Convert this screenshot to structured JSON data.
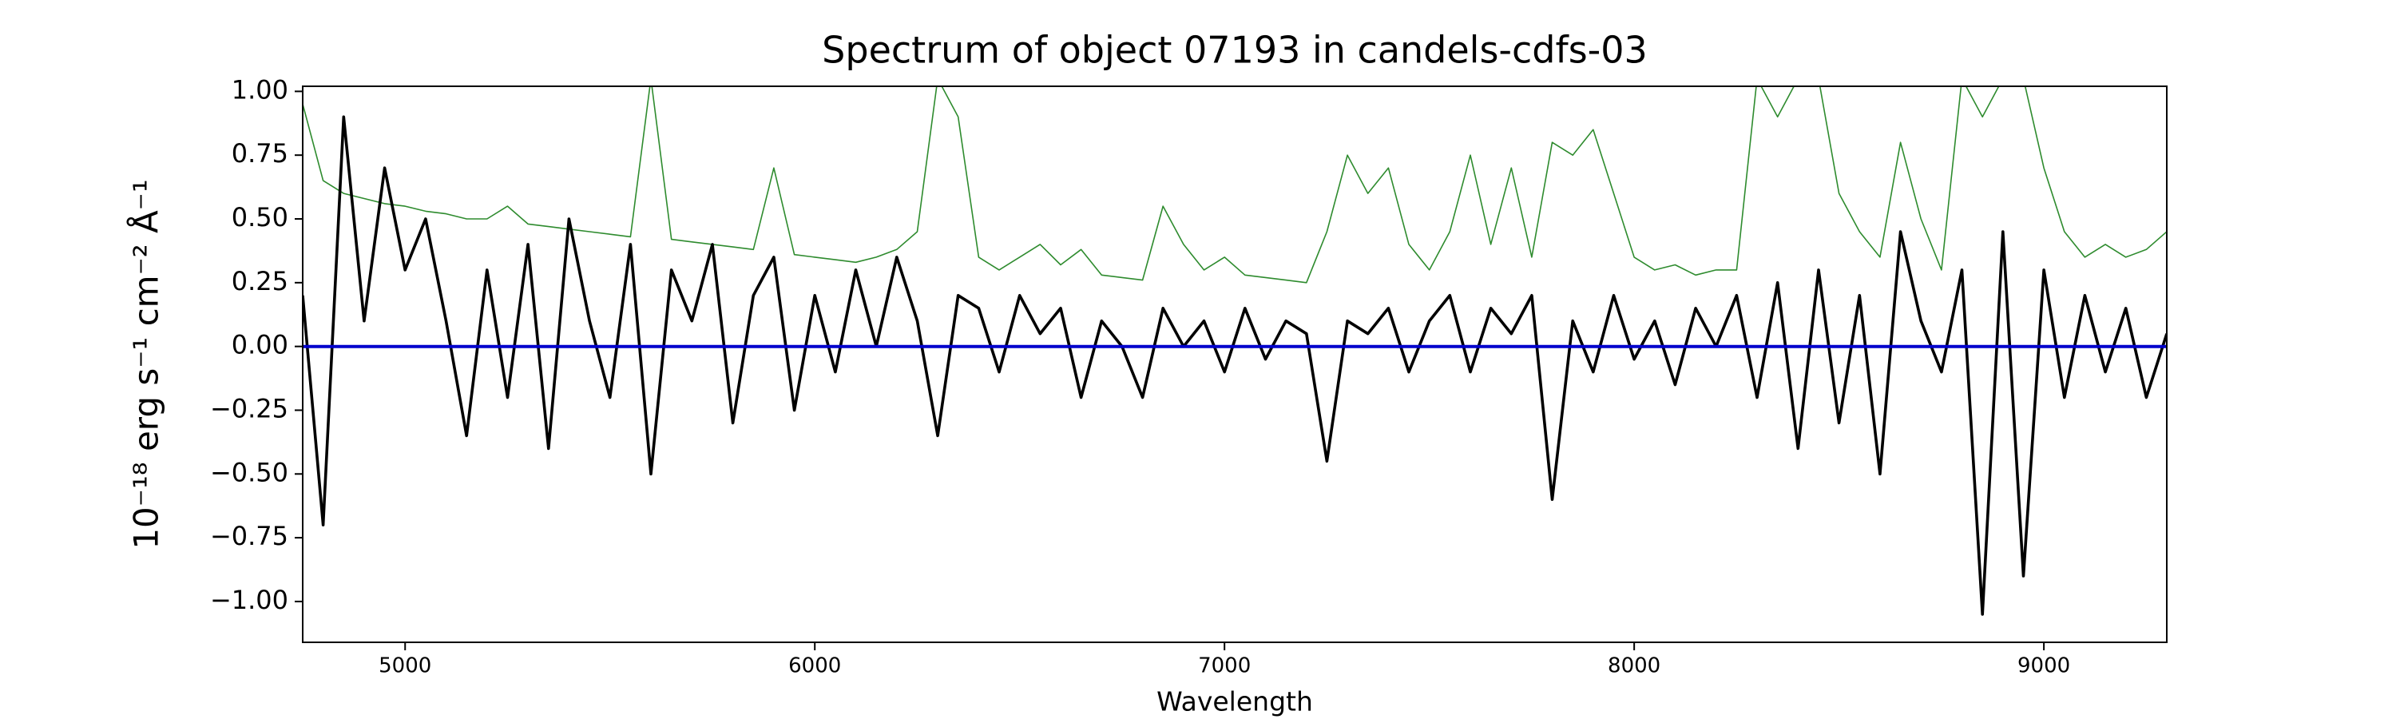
{
  "chart_data": {
    "type": "line",
    "title": "Spectrum of object 07193 in candels-cdfs-03",
    "xlabel": "Wavelength",
    "ylabel": "10⁻¹⁸ erg s⁻¹ cm⁻² Å⁻¹",
    "xlim": [
      4750,
      9300
    ],
    "ylim": [
      -1.16,
      1.02
    ],
    "xticks": [
      5000,
      6000,
      7000,
      8000,
      9000
    ],
    "yticks": [
      {
        "value": 1,
        "label": "1.00"
      },
      {
        "value": 0.75,
        "label": "0.75"
      },
      {
        "value": 0.5,
        "label": "0.50"
      },
      {
        "value": 0.25,
        "label": "0.25"
      },
      {
        "value": 0,
        "label": "0.00"
      },
      {
        "value": -0.25,
        "label": "−0.25"
      },
      {
        "value": -0.5,
        "label": "−0.50"
      },
      {
        "value": -0.75,
        "label": "−0.75"
      },
      {
        "value": -1,
        "label": "−1.00"
      }
    ],
    "grid": false,
    "x": [
      4750,
      4800,
      4850,
      4900,
      4950,
      5000,
      5050,
      5100,
      5150,
      5200,
      5250,
      5300,
      5350,
      5400,
      5450,
      5500,
      5550,
      5600,
      5650,
      5700,
      5750,
      5800,
      5850,
      5900,
      5950,
      6000,
      6050,
      6100,
      6150,
      6200,
      6250,
      6300,
      6350,
      6400,
      6450,
      6500,
      6550,
      6600,
      6650,
      6700,
      6750,
      6800,
      6850,
      6900,
      6950,
      7000,
      7050,
      7100,
      7150,
      7200,
      7250,
      7300,
      7350,
      7400,
      7450,
      7500,
      7550,
      7600,
      7650,
      7700,
      7750,
      7800,
      7850,
      7900,
      7950,
      8000,
      8050,
      8100,
      8150,
      8200,
      8250,
      8300,
      8350,
      8400,
      8450,
      8500,
      8550,
      8600,
      8650,
      8700,
      8750,
      8800,
      8850,
      8900,
      8950,
      9000,
      9050,
      9100,
      9150,
      9200,
      9250,
      9300
    ],
    "series": [
      {
        "color": "#2e8b2e",
        "width": 1.6,
        "values": [
          0.95,
          0.65,
          0.6,
          0.58,
          0.56,
          0.55,
          0.53,
          0.52,
          0.5,
          0.5,
          0.55,
          0.48,
          0.47,
          0.46,
          0.45,
          0.44,
          0.43,
          1.05,
          0.42,
          0.41,
          0.4,
          0.39,
          0.38,
          0.7,
          0.36,
          0.35,
          0.34,
          0.33,
          0.35,
          0.38,
          0.45,
          1.05,
          0.9,
          0.35,
          0.3,
          0.35,
          0.4,
          0.32,
          0.38,
          0.28,
          0.27,
          0.26,
          0.55,
          0.4,
          0.3,
          0.35,
          0.28,
          0.27,
          0.26,
          0.25,
          0.45,
          0.75,
          0.6,
          0.7,
          0.4,
          0.3,
          0.45,
          0.75,
          0.4,
          0.7,
          0.35,
          0.8,
          0.75,
          0.85,
          0.6,
          0.35,
          0.3,
          0.32,
          0.28,
          0.3,
          0.3,
          1.05,
          0.9,
          1.05,
          1.05,
          0.6,
          0.45,
          0.35,
          0.8,
          0.5,
          0.3,
          1.05,
          0.9,
          1.05,
          1.05,
          0.7,
          0.45,
          0.35,
          0.4,
          0.35,
          0.38,
          0.45
        ]
      },
      {
        "color": "#000000",
        "width": 3.6,
        "values": [
          0.2,
          -0.7,
          0.9,
          0.1,
          0.7,
          0.3,
          0.5,
          0.1,
          -0.35,
          0.3,
          -0.2,
          0.4,
          -0.4,
          0.5,
          0.1,
          -0.2,
          0.4,
          -0.5,
          0.3,
          0.1,
          0.4,
          -0.3,
          0.2,
          0.35,
          -0.25,
          0.2,
          -0.1,
          0.3,
          0.0,
          0.35,
          0.1,
          -0.35,
          0.2,
          0.15,
          -0.1,
          0.2,
          0.05,
          0.15,
          -0.2,
          0.1,
          0.0,
          -0.2,
          0.15,
          0.0,
          0.1,
          -0.1,
          0.15,
          -0.05,
          0.1,
          0.05,
          -0.45,
          0.1,
          0.05,
          0.15,
          -0.1,
          0.1,
          0.2,
          -0.1,
          0.15,
          0.05,
          0.2,
          -0.6,
          0.1,
          -0.1,
          0.2,
          -0.05,
          0.1,
          -0.15,
          0.15,
          0.0,
          0.2,
          -0.2,
          0.25,
          -0.4,
          0.3,
          -0.3,
          0.2,
          -0.5,
          0.45,
          0.1,
          -0.1,
          0.3,
          -1.05,
          0.45,
          -0.9,
          0.3,
          -0.2,
          0.2,
          -0.1,
          0.15,
          -0.2,
          0.05
        ]
      },
      {
        "color": "#0000cc",
        "width": 4,
        "x": [
          4750,
          9300
        ],
        "values": [
          0,
          0
        ]
      }
    ]
  }
}
